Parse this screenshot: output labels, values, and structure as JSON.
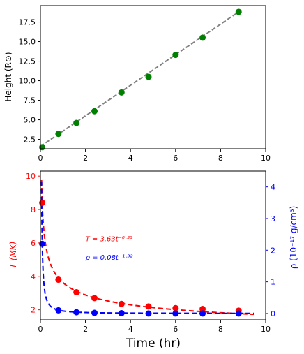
{
  "chart_data": [
    {
      "type": "scatter",
      "ylabel": "Height (R⊙)",
      "xlim": [
        0,
        10
      ],
      "ylim": [
        1.3,
        19.6
      ],
      "x_ticks": [
        "0",
        "2",
        "4",
        "6",
        "8",
        "10"
      ],
      "y_ticks": [
        "2.5",
        "5.0",
        "7.5",
        "10.0",
        "12.5",
        "15.0",
        "17.5"
      ],
      "x_tick_values": [
        0,
        2,
        4,
        6,
        8,
        10
      ],
      "y_tick_values": [
        2.5,
        5.0,
        7.5,
        10.0,
        12.5,
        15.0,
        17.5
      ],
      "grid": false,
      "series": [
        {
          "style": "markers",
          "color": "#008000",
          "x": [
            0.08,
            0.8,
            1.6,
            2.4,
            3.6,
            4.8,
            6.0,
            7.2,
            8.8
          ],
          "y": [
            1.5,
            3.2,
            4.6,
            6.1,
            8.5,
            10.5,
            13.3,
            15.5,
            18.8
          ]
        },
        {
          "style": "dashed-fit",
          "color": "#808080",
          "x": [
            0.0,
            8.8
          ],
          "y": [
            1.6,
            18.8
          ]
        }
      ]
    },
    {
      "type": "scatter",
      "xlabel": "Time (hr)",
      "xlim": [
        0,
        10
      ],
      "x_ticks": [
        "0",
        "2",
        "4",
        "6",
        "8",
        "10"
      ],
      "x_tick_values": [
        0,
        2,
        4,
        6,
        8,
        10
      ],
      "grid": false,
      "left_axis": {
        "label": "T (MK)",
        "color": "#ff0000",
        "ylim": [
          1.4,
          10.3
        ],
        "ticks": [
          "2",
          "4",
          "6",
          "8",
          "10"
        ],
        "tick_values": [
          2,
          4,
          6,
          8,
          10
        ]
      },
      "right_axis": {
        "label": "ρ (10⁻¹⁷ g/cm³)",
        "color": "#0000ff",
        "ylim": [
          -0.2,
          4.5
        ],
        "ticks": [
          "0",
          "1",
          "2",
          "3",
          "4"
        ],
        "tick_values": [
          0,
          1,
          2,
          3,
          4
        ]
      },
      "series": [
        {
          "axis": "left",
          "style": "markers",
          "color": "#ff0000",
          "x": [
            0.08,
            0.8,
            1.6,
            2.4,
            3.6,
            4.8,
            6.0,
            7.2,
            8.8
          ],
          "y": [
            8.4,
            3.8,
            3.05,
            2.7,
            2.35,
            2.2,
            2.1,
            2.05,
            1.95
          ]
        },
        {
          "axis": "left",
          "style": "dashed-fit",
          "color": "#ff0000",
          "fit": {
            "coef": 3.63,
            "exp": -0.33,
            "x_start": 0.05,
            "x_end": 9.5
          }
        },
        {
          "axis": "right",
          "style": "markers",
          "color": "#0000ff",
          "x": [
            0.08,
            0.8,
            1.6,
            2.4,
            3.6,
            4.8,
            6.0,
            7.2,
            8.8
          ],
          "y": [
            2.2,
            0.1,
            0.04,
            0.02,
            0.01,
            0.0,
            0.0,
            0.0,
            0.0
          ]
        },
        {
          "axis": "right",
          "style": "dashed-fit",
          "color": "#0000ff",
          "fit": {
            "coef": 0.08,
            "exp": -1.32,
            "x_start": 0.05,
            "x_end": 9.5
          }
        }
      ],
      "annotations": [
        {
          "text": "T = 3.63t⁻⁰·³³",
          "color": "#ff0000",
          "x": 2.0,
          "y": 6.1,
          "axis": "left"
        },
        {
          "text": "ρ = 0.08t⁻¹·³²",
          "color": "#0000ff",
          "x": 2.0,
          "y": 5.0,
          "axis": "left"
        }
      ]
    }
  ]
}
